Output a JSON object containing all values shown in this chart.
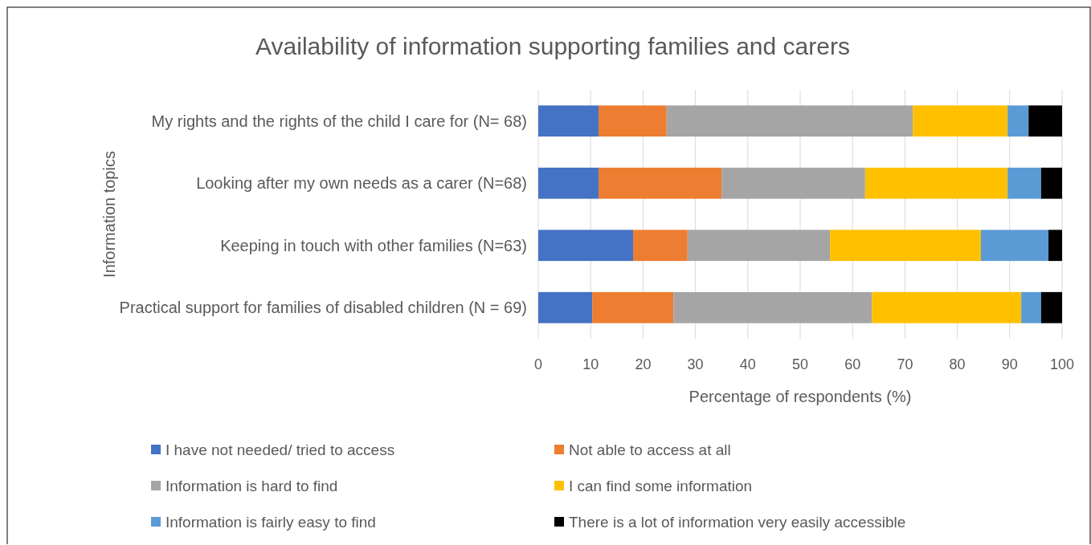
{
  "chart_data": {
    "type": "bar",
    "orientation": "horizontal",
    "stacked": true,
    "title": "Availability of information supporting families and carers",
    "xlabel": "Percentage of respondents (%)",
    "ylabel": "Information topics",
    "categories": [
      "My rights and the rights of the child I care for (N= 68)",
      "Looking after my own needs as a carer (N=68)",
      "Keeping in touch with other families (N=63)",
      "Practical support for families of disabled children (N = 69)"
    ],
    "series": [
      {
        "name": "I have not needed/ tried to access",
        "color": "#4472c4",
        "values": [
          11.5,
          11.5,
          18.1,
          10.3
        ]
      },
      {
        "name": "Not able to access at all",
        "color": "#ed7d31",
        "values": [
          13.0,
          23.5,
          10.4,
          15.5
        ]
      },
      {
        "name": "Information is hard to find",
        "color": "#a5a5a5",
        "values": [
          47.0,
          27.4,
          27.2,
          37.9
        ]
      },
      {
        "name": "I can find some information",
        "color": "#ffc000",
        "values": [
          18.1,
          27.2,
          28.8,
          28.5
        ]
      },
      {
        "name": "Information is fairly easy to find",
        "color": "#5b9bd5",
        "values": [
          4.0,
          6.4,
          12.9,
          3.8
        ]
      },
      {
        "name": "There is a lot of information very easily accessible",
        "color": "#000000",
        "values": [
          6.4,
          4.0,
          2.6,
          4.0
        ]
      }
    ],
    "xlim": [
      0,
      100
    ],
    "xticks": [
      0,
      10,
      20,
      30,
      40,
      50,
      60,
      70,
      80,
      90,
      100
    ],
    "grid": "x",
    "legend": "bottom"
  }
}
